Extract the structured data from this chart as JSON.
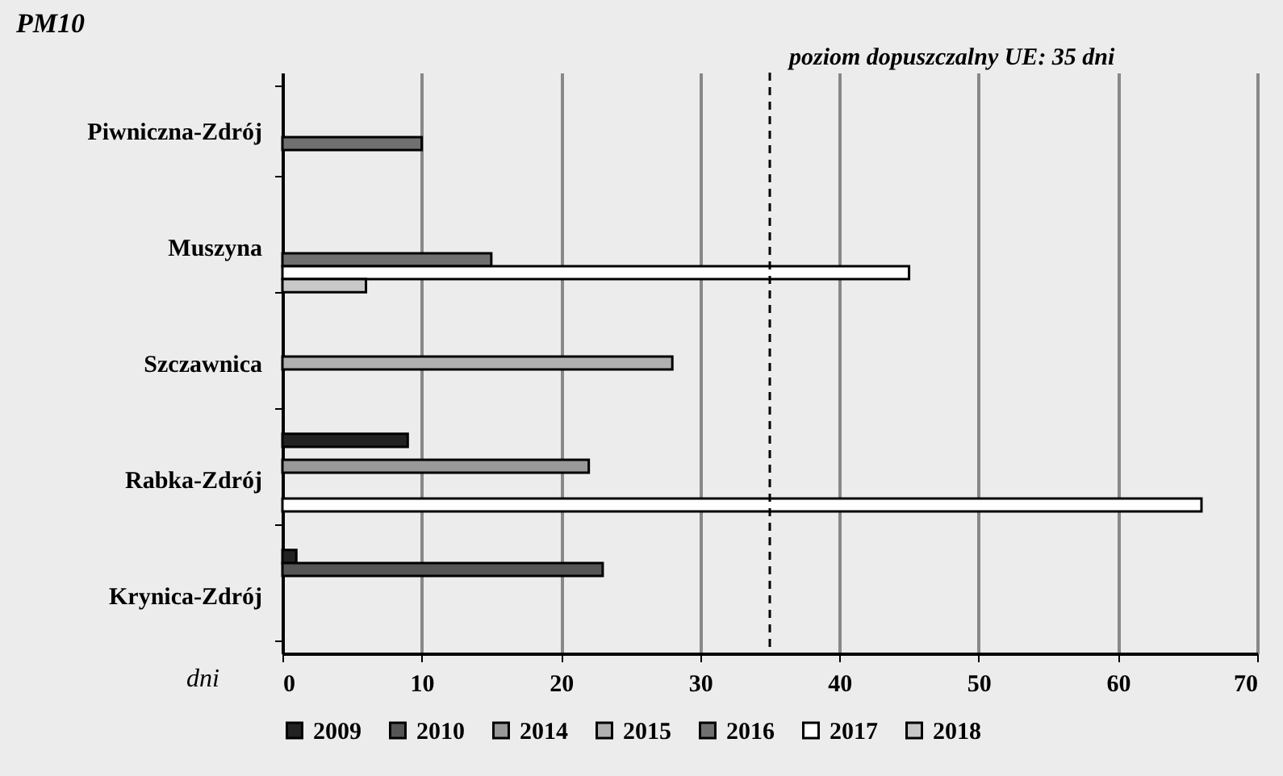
{
  "chart_data": {
    "type": "bar",
    "orientation": "horizontal",
    "title": "PM10",
    "xlabel": "dni",
    "categories": [
      "Piwniczna-Zdrój",
      "Muszyna",
      "Szczawnica",
      "Rabka-Zdrój",
      "Krynica-Zdrój"
    ],
    "series": [
      {
        "name": "2009",
        "color": "#222222",
        "values": [
          null,
          null,
          null,
          9,
          1
        ]
      },
      {
        "name": "2010",
        "color": "#555555",
        "values": [
          null,
          null,
          null,
          null,
          23
        ]
      },
      {
        "name": "2014",
        "color": "#999999",
        "values": [
          null,
          null,
          null,
          22,
          null
        ]
      },
      {
        "name": "2015",
        "color": "#b0b0b0",
        "values": [
          null,
          null,
          28,
          null,
          null
        ]
      },
      {
        "name": "2016",
        "color": "#707070",
        "values": [
          10,
          15,
          null,
          null,
          null
        ]
      },
      {
        "name": "2017",
        "color": "#ffffff",
        "values": [
          null,
          45,
          null,
          66,
          null
        ]
      },
      {
        "name": "2018",
        "color": "#c8c8c8",
        "values": [
          null,
          6,
          null,
          null,
          null
        ]
      }
    ],
    "xlim": [
      0,
      70
    ],
    "xticks": [
      0,
      10,
      20,
      30,
      40,
      50,
      60,
      70
    ],
    "grid": "x",
    "legend": "bottom",
    "ref_lines": [
      {
        "axis": "x",
        "value": 35,
        "label": "poziom  dopuszczalny UE: 35 dni",
        "line_style": "dashed",
        "color": "#000000"
      }
    ]
  }
}
